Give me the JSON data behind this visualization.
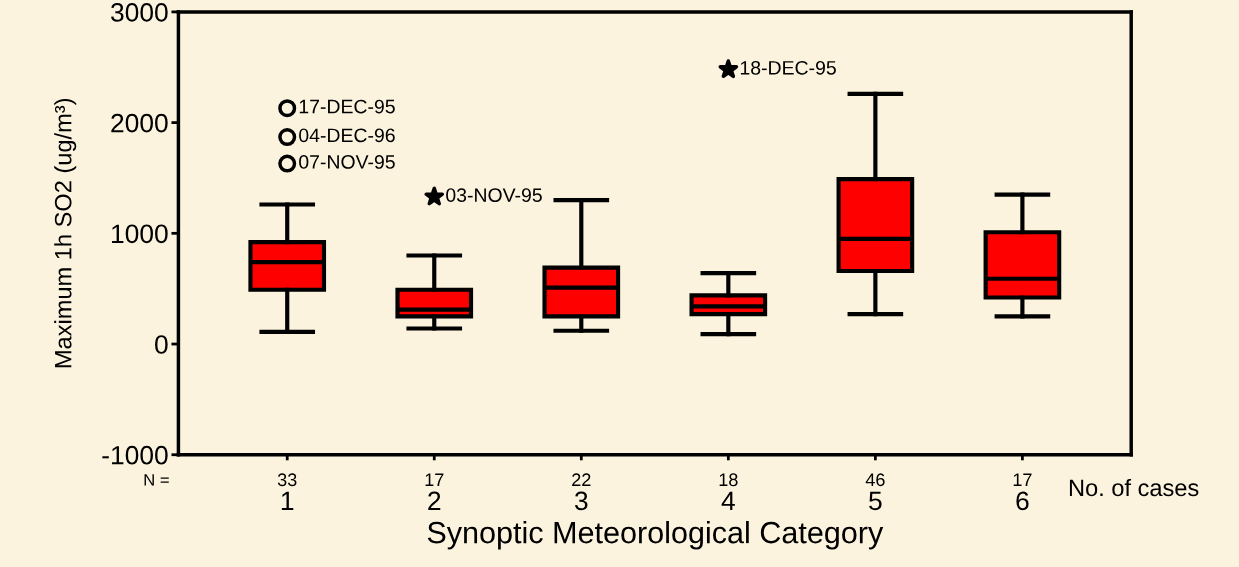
{
  "chart_data": {
    "type": "box",
    "xlabel": "Synoptic Meteorological Category",
    "ylabel": "Maximum 1h SO2 (ug/m³)",
    "categories": [
      "1",
      "2",
      "3",
      "4",
      "5",
      "6"
    ],
    "color": "#ff0000",
    "boxes": [
      {
        "low": 110,
        "q1": 490,
        "median": 740,
        "q3": 920,
        "high": 1260,
        "outliers": [
          2130,
          1870,
          1630
        ]
      },
      {
        "low": 140,
        "q1": 250,
        "median": 310,
        "q3": 490,
        "high": 800,
        "outliers": [
          1330
        ]
      },
      {
        "low": 120,
        "q1": 250,
        "median": 510,
        "q3": 690,
        "high": 1300
      },
      {
        "low": 90,
        "q1": 270,
        "median": 340,
        "q3": 440,
        "high": 640,
        "outliers": [
          2480
        ]
      },
      {
        "low": 270,
        "q1": 660,
        "median": 950,
        "q3": 1490,
        "high": 2260
      },
      {
        "low": 250,
        "q1": 420,
        "median": 590,
        "q3": 1010,
        "high": 1350
      }
    ],
    "ylim": [
      -1000,
      3000
    ],
    "yticks": [
      -1000,
      0,
      1000,
      2000,
      3000
    ],
    "grid": false,
    "annotations": [
      "17-DEC-95",
      "04-DEC-96",
      "07-NOV-95",
      "03-NOV-95",
      "18-DEC-95",
      "N =",
      "33",
      "17",
      "22",
      "18",
      "46",
      "17",
      "No. of cases"
    ]
  }
}
